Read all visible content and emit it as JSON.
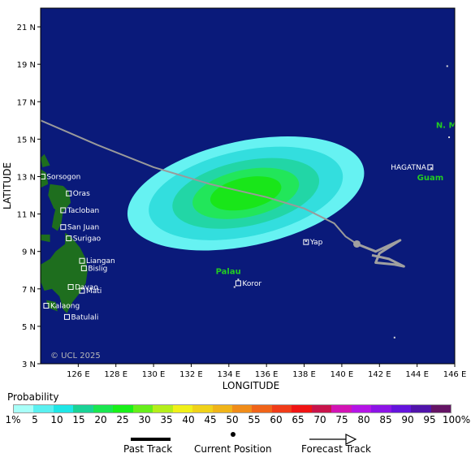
{
  "axes": {
    "xlabel": "LONGITUDE",
    "ylabel": "LATITUDE",
    "x_ticks": [
      "126 E",
      "128 E",
      "130 E",
      "132 E",
      "134 E",
      "136 E",
      "138 E",
      "140 E",
      "142 E",
      "144 E",
      "146 E"
    ],
    "y_ticks": [
      "21 N",
      "19 N",
      "17 N",
      "15 N",
      "13 N",
      "11 N",
      "9 N",
      "7 N",
      "5 N",
      "3 N"
    ],
    "lon_range": [
      124,
      146
    ],
    "lat_range": [
      3,
      22
    ]
  },
  "map": {
    "copyright": "© UCL 2025",
    "ocean_color": "#0a1a7a",
    "land_color": "#1e6e1e",
    "places": [
      {
        "name": "Sorsogon",
        "lon": 124.1,
        "lat": 13.0
      },
      {
        "name": "Oras",
        "lon": 125.5,
        "lat": 12.1
      },
      {
        "name": "Tacloban",
        "lon": 125.2,
        "lat": 11.2
      },
      {
        "name": "San Juan",
        "lon": 125.2,
        "lat": 10.3
      },
      {
        "name": "Surigao",
        "lon": 125.5,
        "lat": 9.7
      },
      {
        "name": "Liangan",
        "lon": 126.2,
        "lat": 8.5
      },
      {
        "name": "Bislig",
        "lon": 126.3,
        "lat": 8.1
      },
      {
        "name": "Davao",
        "lon": 125.6,
        "lat": 7.1
      },
      {
        "name": "Mati",
        "lon": 126.2,
        "lat": 6.9
      },
      {
        "name": "Kalaong",
        "lon": 124.3,
        "lat": 6.1
      },
      {
        "name": "Batulali",
        "lon": 125.4,
        "lat": 5.5
      },
      {
        "name": "Yap",
        "lon": 138.1,
        "lat": 9.5
      },
      {
        "name": "Koror",
        "lon": 134.5,
        "lat": 7.3
      },
      {
        "name": "HAGATNA",
        "lon": 144.7,
        "lat": 13.5
      }
    ],
    "regions": [
      {
        "name": "Palau",
        "lon": 133.3,
        "lat": 7.8
      },
      {
        "name": "Guam",
        "lon": 144.0,
        "lat": 12.8
      },
      {
        "name": "N. Mari",
        "lon": 145.0,
        "lat": 15.6
      }
    ],
    "past_track": [
      [
        124.0,
        16.0
      ],
      [
        127.0,
        14.7
      ],
      [
        130.0,
        13.5
      ],
      [
        133.0,
        12.6
      ],
      [
        136.0,
        11.9
      ],
      [
        138.0,
        11.3
      ],
      [
        139.6,
        10.5
      ],
      [
        140.2,
        9.8
      ],
      [
        140.8,
        9.4
      ]
    ],
    "current_position": [
      140.8,
      9.4
    ],
    "forecast_track": [
      [
        140.8,
        9.4
      ],
      [
        141.8,
        9.0
      ],
      [
        143.1,
        9.6
      ],
      [
        142.0,
        8.9
      ],
      [
        141.8,
        8.4
      ],
      [
        142.8,
        8.3
      ],
      [
        143.3,
        8.2
      ],
      [
        142.5,
        8.6
      ],
      [
        141.6,
        8.8
      ]
    ],
    "probability_field": {
      "center": [
        134.9,
        12.1
      ],
      "outer_radii_deg": [
        6.4,
        2.8
      ],
      "rotation_deg": -12,
      "levels": [
        {
          "scale": 1.0,
          "color": "#66f2f2"
        },
        {
          "scale": 0.82,
          "color": "#33dede"
        },
        {
          "scale": 0.62,
          "color": "#22d6a6"
        },
        {
          "scale": 0.45,
          "color": "#22e65a"
        },
        {
          "scale": 0.3,
          "color": "#19e619"
        }
      ]
    }
  },
  "legend": {
    "title": "Probability",
    "colors": [
      "#a8fff8",
      "#5af0f0",
      "#1ee6e6",
      "#1ad296",
      "#1ae650",
      "#19f019",
      "#66ee1a",
      "#b4ee1a",
      "#f0f019",
      "#f0d219",
      "#f0b419",
      "#f08c19",
      "#f06419",
      "#f03c19",
      "#f01414",
      "#c8144b",
      "#d214b4",
      "#b414e6",
      "#8c14e6",
      "#6414dc",
      "#5014aa",
      "#641464"
    ],
    "labels": [
      "1%",
      "5",
      "10",
      "15",
      "20",
      "25",
      "30",
      "35",
      "40",
      "45",
      "50",
      "55",
      "60",
      "65",
      "70",
      "75",
      "80",
      "85",
      "90",
      "95",
      "100%"
    ]
  },
  "key": {
    "past_track": "Past Track",
    "current_position": "Current Position",
    "forecast_track": "Forecast Track"
  }
}
